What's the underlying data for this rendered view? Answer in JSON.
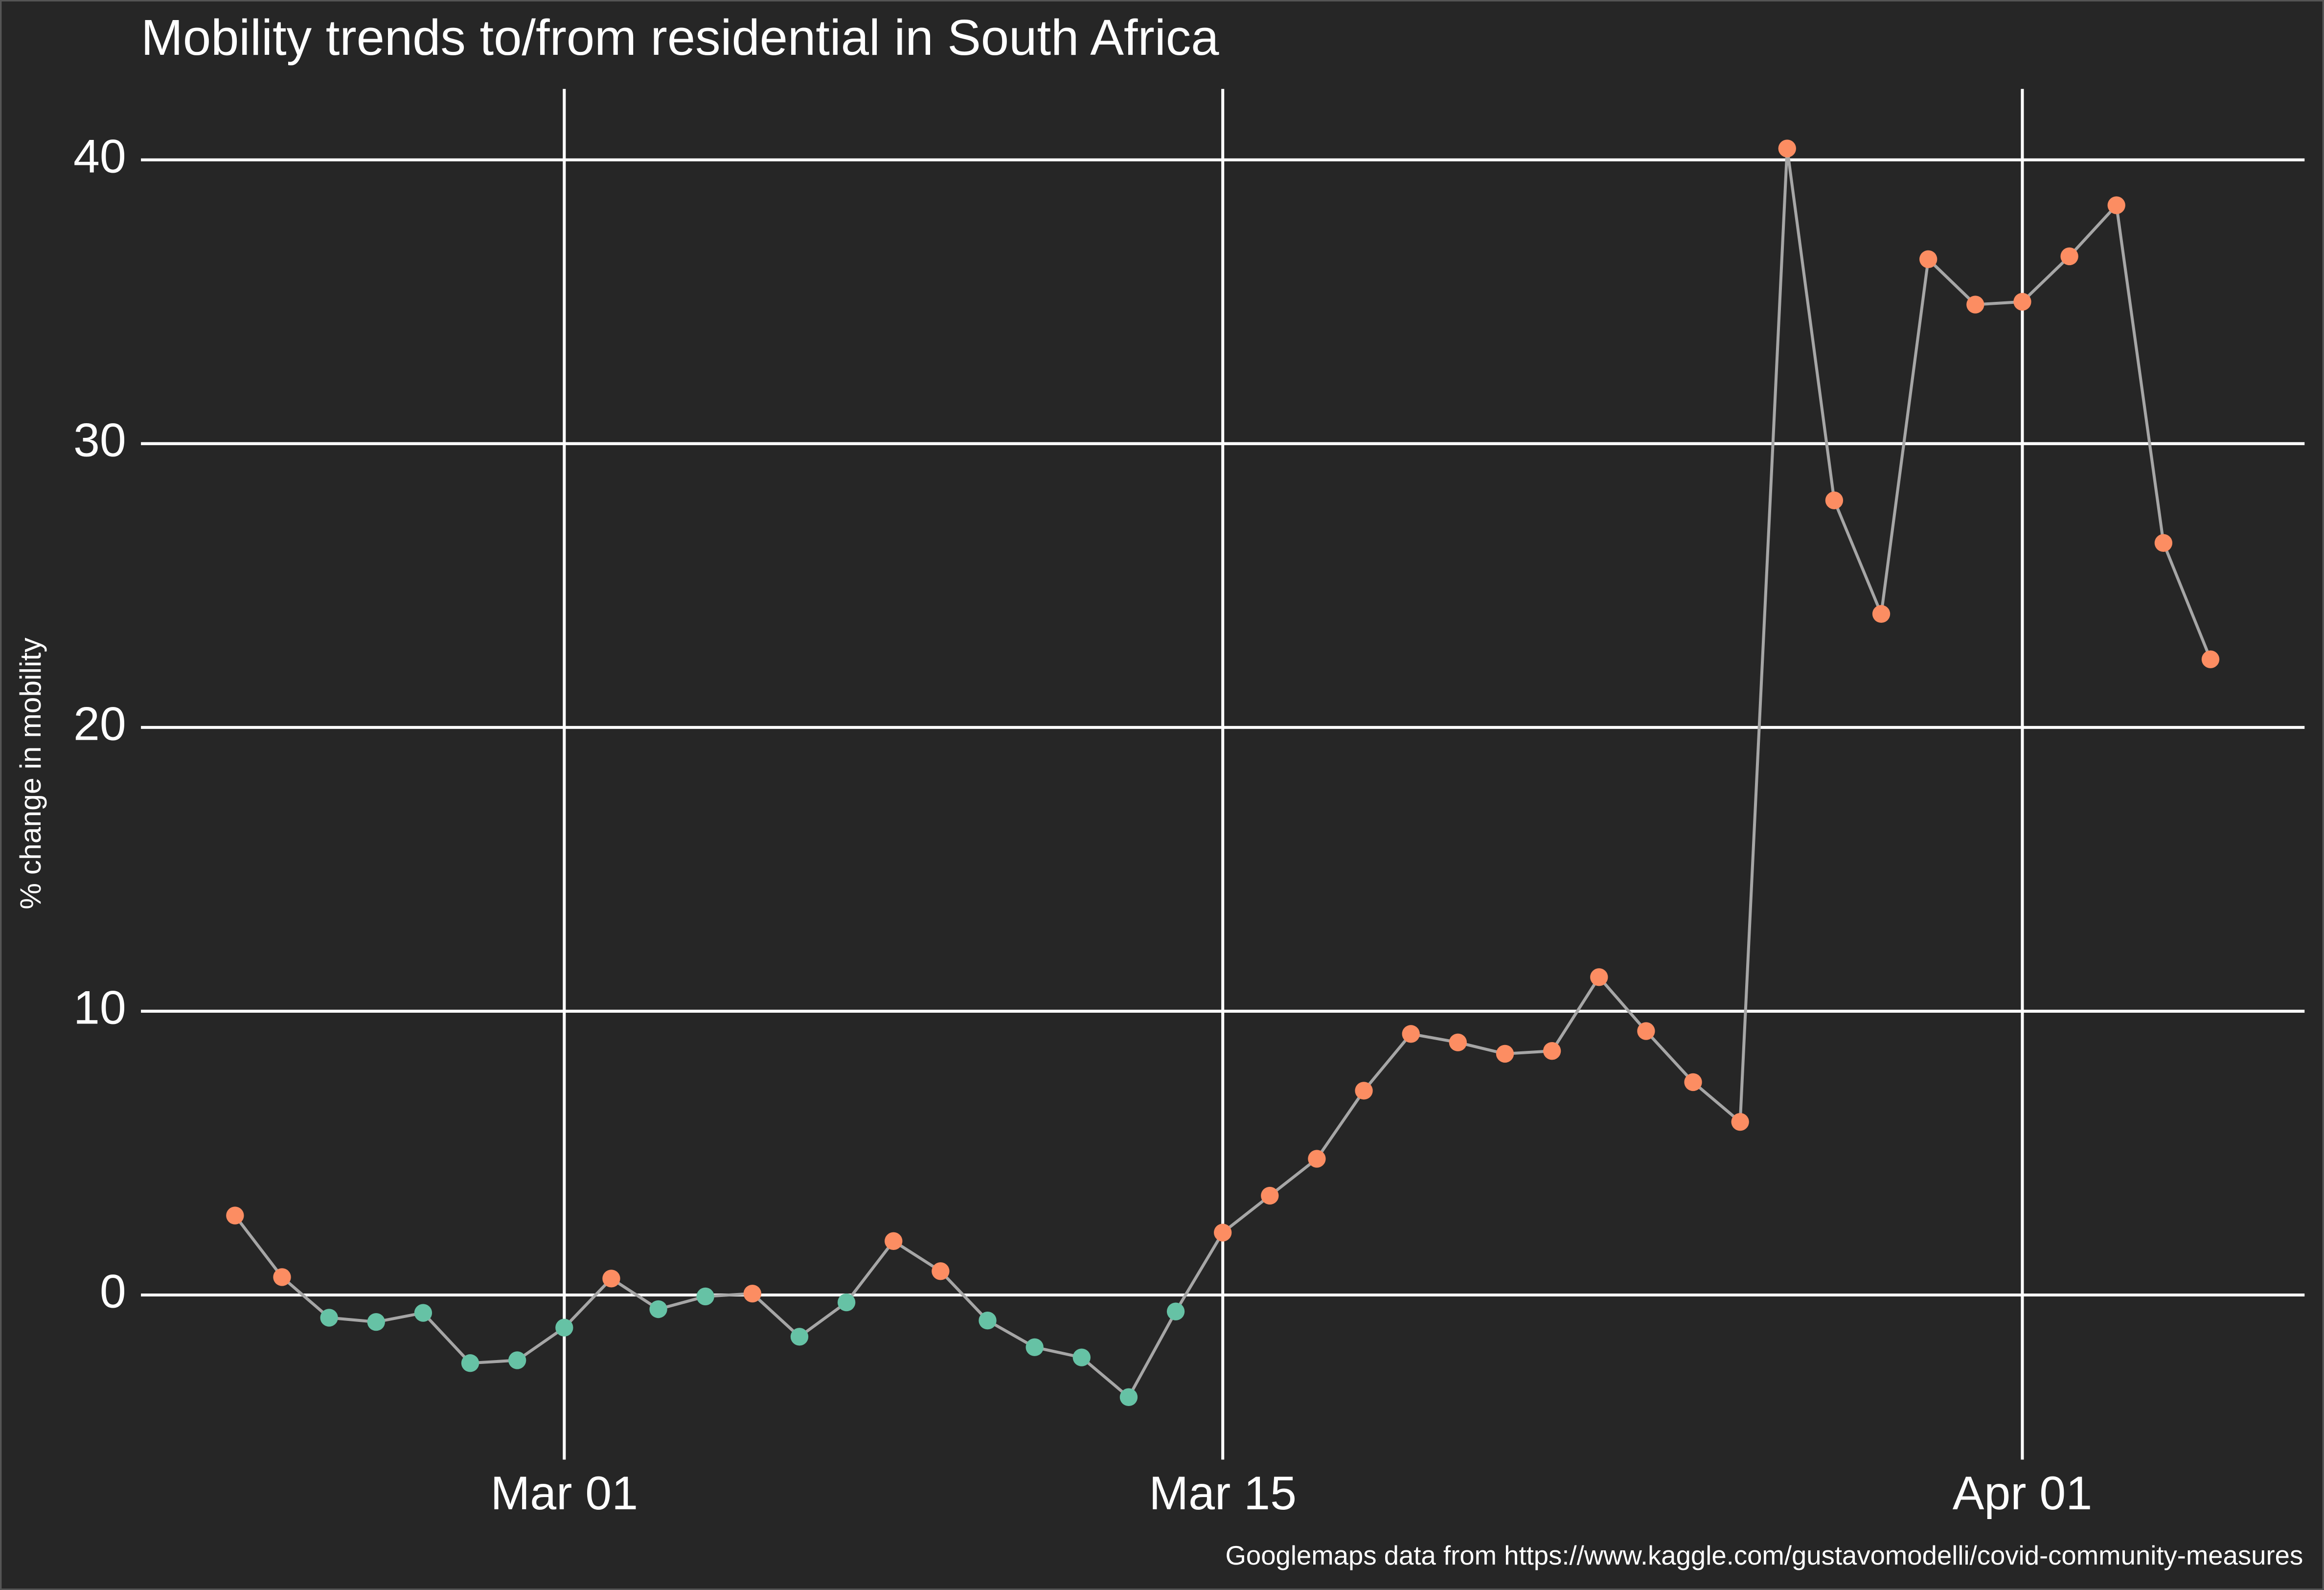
{
  "chart_data": {
    "type": "line",
    "title": "Mobility trends to/from residential in South Africa",
    "y_label": "% change in mobility",
    "caption": "Googlemaps data from https://www.kaggle.com/gustavomodelli/covid-community-measures",
    "x": [
      "Feb 23",
      "Feb 24",
      "Feb 25",
      "Feb 26",
      "Feb 27",
      "Feb 28",
      "Feb 29",
      "Mar 01",
      "Mar 02",
      "Mar 03",
      "Mar 04",
      "Mar 05",
      "Mar 06",
      "Mar 07",
      "Mar 08",
      "Mar 09",
      "Mar 10",
      "Mar 11",
      "Mar 12",
      "Mar 13",
      "Mar 14",
      "Mar 15",
      "Mar 16",
      "Mar 17",
      "Mar 18",
      "Mar 19",
      "Mar 20",
      "Mar 21",
      "Mar 22",
      "Mar 23",
      "Mar 24",
      "Mar 25",
      "Mar 26",
      "Mar 27",
      "Mar 28",
      "Mar 29",
      "Mar 30",
      "Mar 31",
      "Apr 01",
      "Apr 02",
      "Apr 03",
      "Apr 04",
      "Apr 05"
    ],
    "series": [
      {
        "color": "#a6a6a6",
        "marker_colors": {
          "above": "#fc8d62",
          "below": "#66c2a5"
        },
        "values": [
          2.8,
          0.63,
          -0.8,
          -0.95,
          -0.63,
          -2.4,
          -2.3,
          -1.15,
          0.58,
          -0.5,
          -0.05,
          0.05,
          -1.47,
          -0.26,
          1.9,
          0.84,
          -0.9,
          -1.84,
          -2.2,
          -3.6,
          -0.58,
          2.2,
          3.5,
          4.8,
          7.2,
          9.2,
          8.9,
          8.5,
          8.6,
          11.2,
          9.3,
          7.5,
          6.1,
          40.4,
          28.0,
          24.0,
          36.5,
          34.9,
          35.0,
          36.6,
          38.4,
          26.5,
          22.4
        ]
      }
    ],
    "xlim": [
      "Feb 21",
      "Apr 07"
    ],
    "xticks": [
      "Mar 01",
      "Mar 15",
      "Apr 01"
    ],
    "ylim": [
      -5.8,
      42.5
    ],
    "yticks": [
      0,
      10,
      20,
      30,
      40
    ],
    "grid": true,
    "background": "#262626",
    "grid_color": "#ffffff"
  }
}
